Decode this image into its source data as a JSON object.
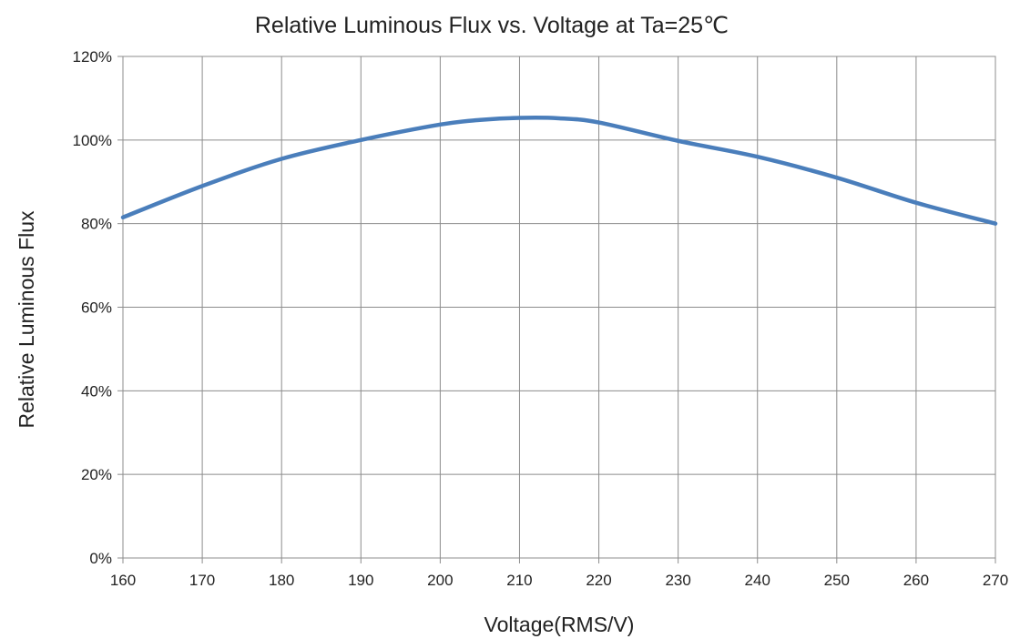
{
  "chart_data": {
    "type": "line",
    "title": "Relative Luminous Flux  vs. Voltage at Ta=25℃",
    "xlabel": "Voltage(RMS/V)",
    "ylabel": "Relative Luminous  Flux",
    "xlim": [
      160,
      270
    ],
    "ylim": [
      0,
      120
    ],
    "x_ticks": [
      160,
      170,
      180,
      190,
      200,
      210,
      220,
      230,
      240,
      250,
      260,
      270
    ],
    "x_tick_labels": [
      "160",
      "170",
      "180",
      "190",
      "200",
      "210",
      "220",
      "230",
      "240",
      "250",
      "260",
      "270"
    ],
    "y_ticks": [
      0,
      20,
      40,
      60,
      80,
      100,
      120
    ],
    "y_tick_labels": [
      "0%",
      "20%",
      "40%",
      "60%",
      "80%",
      "100%",
      "120%"
    ],
    "grid": true,
    "legend": "none",
    "series": [
      {
        "color": "#4a7ebb",
        "x": [
          160,
          170,
          180,
          190,
          200,
          205,
          210,
          215,
          220,
          230,
          240,
          250,
          260,
          270
        ],
        "y": [
          81.5,
          89,
          95.5,
          100,
          103.7,
          104.8,
          105.3,
          105.2,
          104.2,
          99.8,
          96,
          91,
          85,
          80
        ]
      }
    ]
  }
}
